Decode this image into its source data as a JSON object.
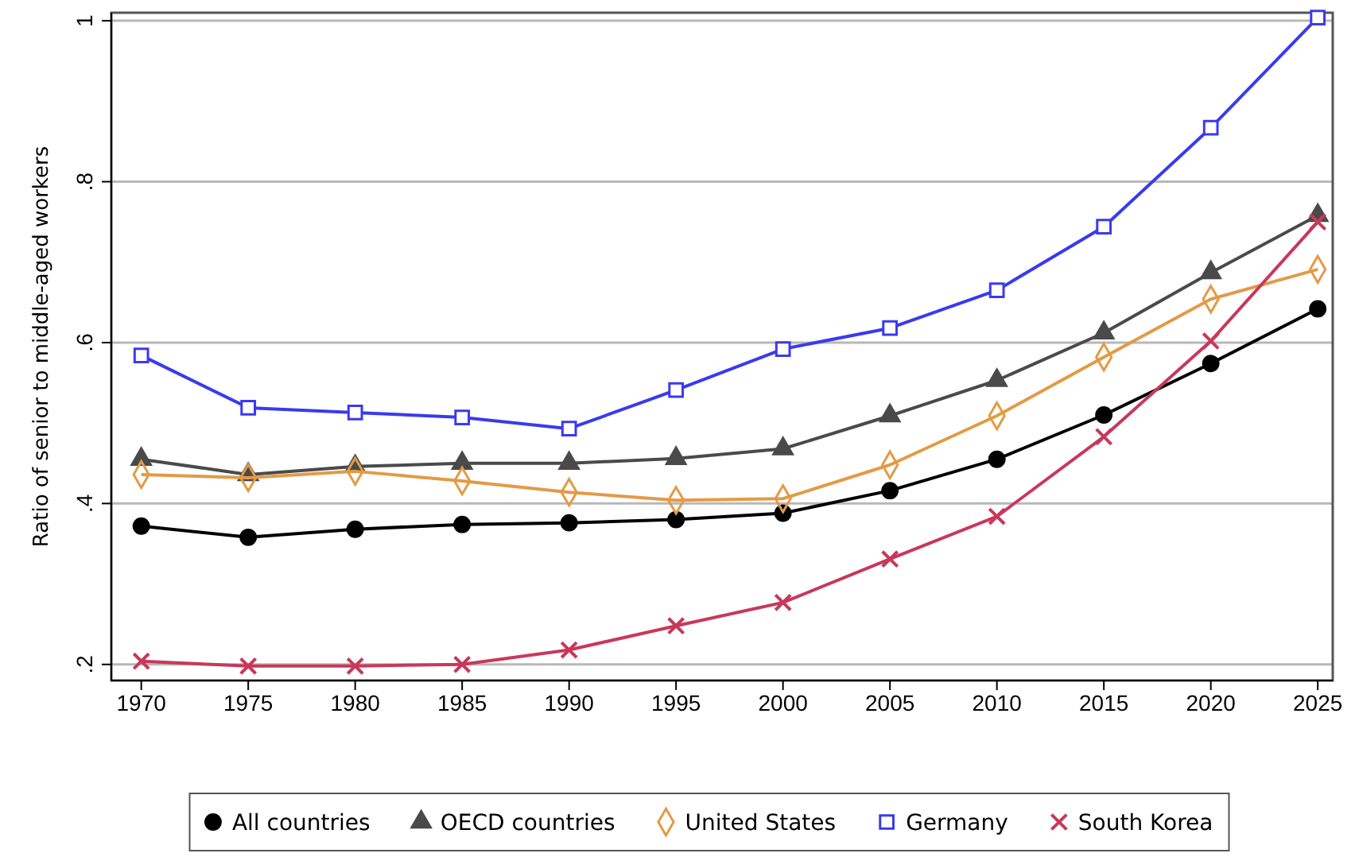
{
  "chart_data": {
    "type": "line",
    "ylabel": "Ratio of senior to middle-aged workers",
    "x": [
      1970,
      1975,
      1980,
      1985,
      1990,
      1995,
      2000,
      2005,
      2010,
      2015,
      2020,
      2025
    ],
    "xlim": [
      1968.6,
      2025.7
    ],
    "xticks": [
      1970,
      1975,
      1980,
      1985,
      1990,
      1995,
      2000,
      2005,
      2010,
      2015,
      2020,
      2025
    ],
    "ylim": [
      0.18,
      1.01
    ],
    "yticks": [
      {
        "value": 0.2,
        "label": ".2"
      },
      {
        "value": 0.4,
        "label": ".4"
      },
      {
        "value": 0.6,
        "label": ".6"
      },
      {
        "value": 0.8,
        "label": ".8"
      },
      {
        "value": 1,
        "label": "1"
      }
    ],
    "grid": "y",
    "legend": "bottom",
    "series": [
      {
        "name": "All countries",
        "color": "#000000",
        "marker": "circle",
        "values": [
          0.372,
          0.358,
          0.368,
          0.374,
          0.376,
          0.38,
          0.388,
          0.416,
          0.455,
          0.51,
          0.574,
          0.642
        ]
      },
      {
        "name": "OECD countries",
        "color": "#4a4a4a",
        "marker": "triangle",
        "values": [
          0.455,
          0.436,
          0.446,
          0.45,
          0.45,
          0.456,
          0.468,
          0.509,
          0.553,
          0.612,
          0.687,
          0.758
        ]
      },
      {
        "name": "United States",
        "color": "#e39a45",
        "marker": "diamond",
        "values": [
          0.436,
          0.432,
          0.44,
          0.428,
          0.414,
          0.404,
          0.406,
          0.448,
          0.509,
          0.582,
          0.654,
          0.691
        ]
      },
      {
        "name": "Germany",
        "color": "#3a3aee",
        "marker": "square",
        "values": [
          0.584,
          0.519,
          0.513,
          0.507,
          0.493,
          0.541,
          0.592,
          0.618,
          0.665,
          0.744,
          0.867,
          1.004
        ]
      },
      {
        "name": "South Korea",
        "color": "#c8385a",
        "marker": "cross",
        "values": [
          0.204,
          0.198,
          0.198,
          0.2,
          0.218,
          0.248,
          0.277,
          0.331,
          0.384,
          0.483,
          0.602,
          0.75
        ]
      }
    ]
  }
}
